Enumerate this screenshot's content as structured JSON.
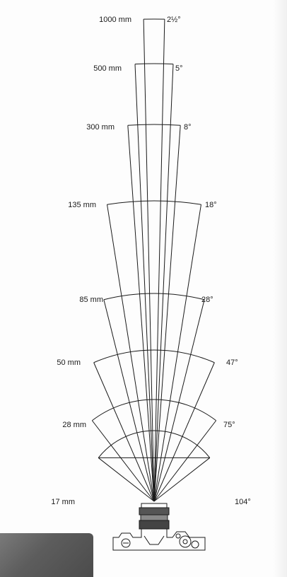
{
  "lenses": [
    {
      "focal": "1000 mm",
      "angle_text": "2½°",
      "angle": 2.5
    },
    {
      "focal": "500 mm",
      "angle_text": "5°",
      "angle": 5
    },
    {
      "focal": "300 mm",
      "angle_text": "8°",
      "angle": 8
    },
    {
      "focal": "135 mm",
      "angle_text": "18°",
      "angle": 18
    },
    {
      "focal": "85 mm",
      "angle_text": "28°",
      "angle": 28
    },
    {
      "focal": "50 mm",
      "angle_text": "47°",
      "angle": 47
    },
    {
      "focal": "28 mm",
      "angle_text": "75°",
      "angle": 75
    },
    {
      "focal": "17 mm",
      "angle_text": "104°",
      "angle": 104
    }
  ],
  "colors": {
    "line": "#1a1a1a",
    "background": "#fdfdfd"
  }
}
